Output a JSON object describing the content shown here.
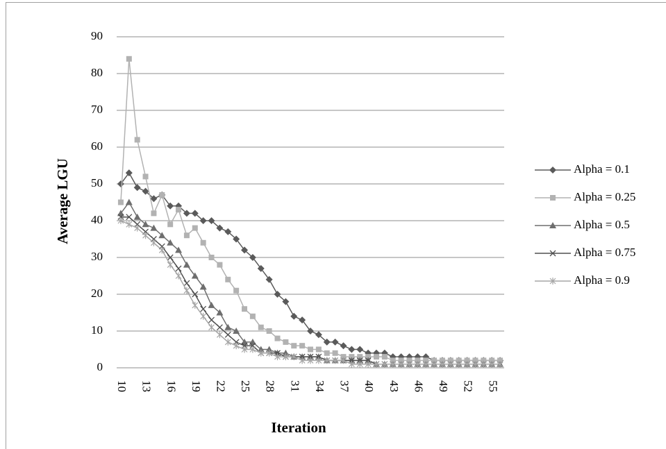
{
  "chart_data": {
    "type": "line",
    "x_label": "Iteration",
    "y_label": "Average LGU",
    "categories": [
      "10",
      null,
      null,
      "13",
      null,
      null,
      "16",
      null,
      null,
      "19",
      null,
      null,
      "22",
      null,
      null,
      "25",
      null,
      null,
      "28",
      null,
      null,
      "31",
      null,
      null,
      "34",
      null,
      null,
      "37",
      null,
      null,
      "40",
      null,
      null,
      "43",
      null,
      null,
      "46",
      null,
      null,
      "49",
      null,
      null,
      "52",
      null,
      null,
      "55",
      null
    ],
    "series": [
      {
        "name": "Alpha = 0.1",
        "color": "#5a5a5a",
        "marker": "diamond",
        "values": [
          50,
          53,
          49,
          48,
          46,
          47,
          44,
          44,
          42,
          42,
          40,
          40,
          38,
          37,
          35,
          32,
          30,
          27,
          24,
          20,
          18,
          14,
          13,
          10,
          9,
          7,
          7,
          6,
          5,
          5,
          4,
          4,
          4,
          3,
          3,
          3,
          3,
          3,
          2,
          2,
          2,
          2,
          2,
          2,
          2,
          2,
          2
        ]
      },
      {
        "name": "Alpha = 0.25",
        "color": "#b2b2b2",
        "marker": "square",
        "values": [
          45,
          84,
          62,
          52,
          42,
          47,
          39,
          43,
          36,
          38,
          34,
          30,
          28,
          24,
          21,
          16,
          14,
          11,
          10,
          8,
          7,
          6,
          6,
          5,
          5,
          4,
          4,
          3,
          3,
          3,
          3,
          3,
          3,
          2,
          2,
          2,
          2,
          2,
          2,
          2,
          2,
          2,
          2,
          2,
          2,
          2,
          2
        ]
      },
      {
        "name": "Alpha = 0.5",
        "color": "#6e6e6e",
        "marker": "triangle",
        "values": [
          42,
          45,
          41,
          39,
          38,
          36,
          34,
          32,
          28,
          25,
          22,
          17,
          15,
          11,
          10,
          7,
          7,
          5,
          5,
          4,
          4,
          3,
          3,
          3,
          3,
          2,
          2,
          2,
          2,
          2,
          2,
          1,
          1,
          1,
          1,
          1,
          1,
          1,
          1,
          1,
          1,
          1,
          1,
          1,
          1,
          1,
          1
        ]
      },
      {
        "name": "Alpha = 0.75",
        "color": "#4e4e4e",
        "marker": "cross",
        "values": [
          41,
          41,
          39,
          37,
          35,
          33,
          30,
          27,
          23,
          20,
          16,
          13,
          11,
          9,
          7,
          6,
          6,
          4,
          4,
          4,
          3,
          3,
          3,
          3,
          3,
          2,
          2,
          2,
          2,
          2,
          2,
          1,
          1,
          1,
          1,
          1,
          1,
          1,
          1,
          1,
          1,
          1,
          1,
          1,
          1,
          1,
          1
        ]
      },
      {
        "name": "Alpha = 0.9",
        "color": "#a6a6a6",
        "marker": "star",
        "values": [
          40,
          39,
          38,
          36,
          34,
          32,
          28,
          25,
          21,
          17,
          14,
          11,
          9,
          7,
          6,
          5,
          5,
          4,
          4,
          3,
          3,
          3,
          2,
          2,
          2,
          2,
          2,
          2,
          1,
          1,
          1,
          1,
          1,
          1,
          1,
          1,
          1,
          1,
          1,
          1,
          1,
          1,
          1,
          1,
          1,
          1,
          1
        ]
      }
    ],
    "ylim": [
      0,
      90
    ],
    "yticks": [
      0,
      10,
      20,
      30,
      40,
      50,
      60,
      70,
      80,
      90
    ],
    "grid": true,
    "legend": "right"
  }
}
